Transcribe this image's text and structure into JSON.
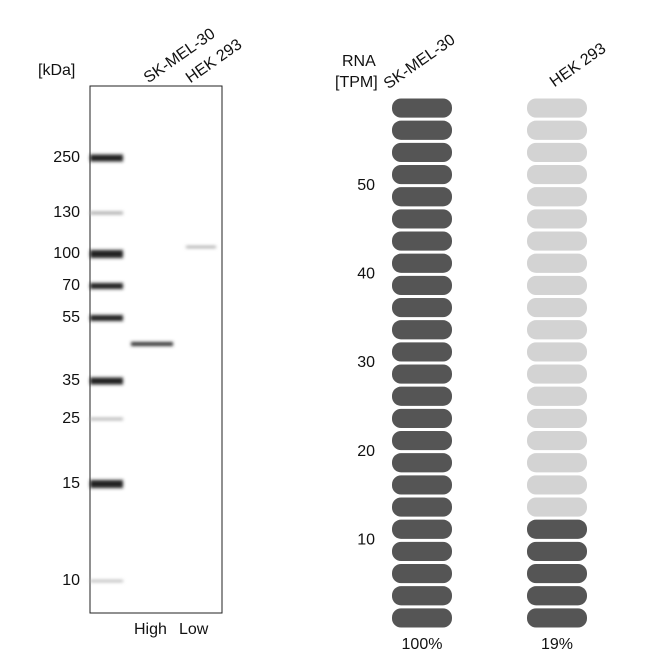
{
  "blot": {
    "unit": "[kDa]",
    "lanes": [
      "SK-MEL-30",
      "HEK 293"
    ],
    "ladder": [
      "250",
      "130",
      "100",
      "70",
      "55",
      "35",
      "25",
      "15",
      "10"
    ],
    "footer": [
      "High",
      "Low"
    ]
  },
  "chart_data": {
    "type": "pill",
    "ylabel": [
      "RNA",
      "[TPM]"
    ],
    "categories": [
      "SK-MEL-30",
      "HEK 293"
    ],
    "series": [
      {
        "name": "TPM",
        "values": [
          60,
          12
        ],
        "value_labels": [
          "100%",
          "19%"
        ]
      }
    ],
    "step": 2.5,
    "on_color": "#555555",
    "off_color": "#d3d3d3",
    "ylim": [
      0,
      60
    ],
    "yticks": [
      10,
      20,
      30,
      40,
      50
    ]
  }
}
